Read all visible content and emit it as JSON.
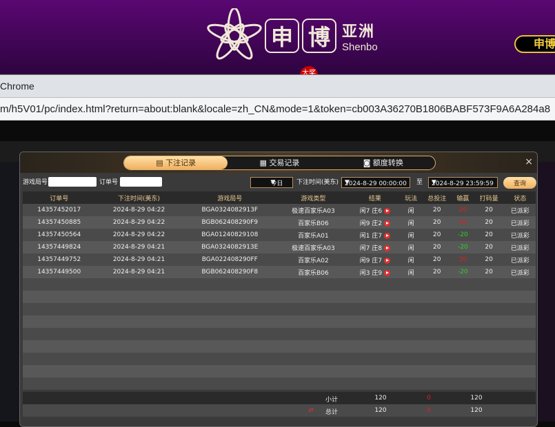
{
  "banner": {
    "logo_chars": [
      "申",
      "博"
    ],
    "logo_cn": "亚洲",
    "logo_en": "Shenbo",
    "right_button": "申博",
    "badge": "大奖"
  },
  "browser": {
    "title": "Chrome",
    "url": "m/h5V01/pc/index.html?return=about:blank&locale=zh_CN&mode=1&token=cb003A36270B1806BABF573F9A6A284a8"
  },
  "modal": {
    "tabs": [
      {
        "label": "下注记录",
        "icon": "clipboard-icon",
        "active": true
      },
      {
        "label": "交易记录",
        "icon": "document-icon"
      },
      {
        "label": "额度转换",
        "icon": "coin-transfer-icon"
      }
    ],
    "close": "×",
    "filter": {
      "round_label": "游戏局号",
      "round_value": "",
      "order_label": "订单号",
      "order_value": "",
      "period": "今日",
      "time_label": "下注时间(美东)",
      "start": "2024-8-29 00:00:00",
      "to": "至",
      "end": "2024-8-29 23:59:59",
      "query": "查询"
    },
    "columns": [
      "订单号",
      "下注时间(美东)",
      "游戏局号",
      "游戏类型",
      "结果",
      "玩法",
      "总投注",
      "输赢",
      "打码量",
      "状态"
    ],
    "rows": [
      [
        "14357452017",
        "2024-8-29 04:22",
        "BGA0324082913F",
        "极速百家乐A03",
        "闲7 庄6",
        "闲",
        "20",
        "20",
        "20",
        "已派彩"
      ],
      [
        "14357450885",
        "2024-8-29 04:22",
        "BGB062408290F9",
        "百家乐B06",
        "闲9 庄2",
        "闲",
        "20",
        "20",
        "20",
        "已派彩"
      ],
      [
        "14357450564",
        "2024-8-29 04:22",
        "BGA01240829108",
        "百家乐A01",
        "闲1 庄7",
        "闲",
        "20",
        "-20",
        "20",
        "已派彩"
      ],
      [
        "14357449824",
        "2024-8-29 04:21",
        "BGA0324082913E",
        "极速百家乐A03",
        "闲7 庄8",
        "闲",
        "20",
        "-20",
        "20",
        "已派彩"
      ],
      [
        "14357449752",
        "2024-8-29 04:21",
        "BGA022408290FF",
        "百家乐A02",
        "闲9 庄7",
        "闲",
        "20",
        "20",
        "20",
        "已派彩"
      ],
      [
        "14357449500",
        "2024-8-29 04:21",
        "BGB062408290F8",
        "百家乐B06",
        "闲3 庄9",
        "闲",
        "20",
        "-20",
        "20",
        "已派彩"
      ]
    ],
    "subtotal": {
      "label": "小计",
      "bet": "120",
      "win": "0",
      "turnover": "120"
    },
    "total": {
      "label": "总计",
      "bet": "120",
      "win": "0",
      "turnover": "120"
    },
    "colors": {
      "win": "#e02020",
      "loss": "#30d030",
      "accent": "#f0b060"
    }
  }
}
